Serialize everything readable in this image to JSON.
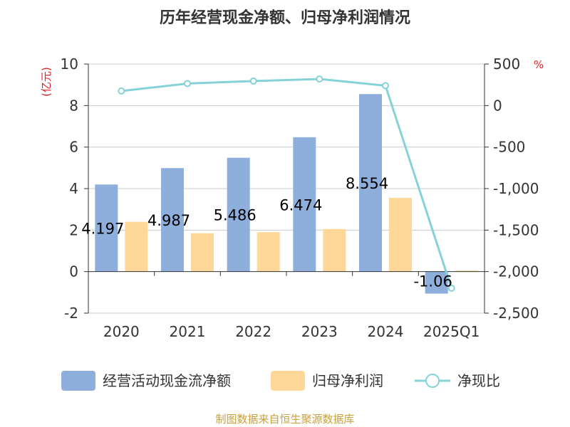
{
  "chart_data": {
    "type": "bar",
    "title": "历年经营现金净额、归母净利润情况",
    "categories": [
      "2020",
      "2021",
      "2022",
      "2023",
      "2024",
      "2025Q1"
    ],
    "series": [
      {
        "name": "经营活动现金流净额",
        "kind": "bar",
        "axis": "left",
        "color": "#8eaedc",
        "values": [
          4.197,
          4.987,
          5.486,
          6.474,
          8.554,
          -1.06
        ]
      },
      {
        "name": "归母净利润",
        "kind": "bar",
        "axis": "left",
        "color": "#fdd898",
        "values": [
          2.4,
          1.85,
          1.9,
          2.05,
          3.55,
          0.05
        ]
      },
      {
        "name": "净现比",
        "kind": "line",
        "axis": "right",
        "color": "#85d3d6",
        "values": [
          175,
          265,
          295,
          320,
          240,
          -2200
        ]
      }
    ],
    "data_labels": [
      "4.197",
      "4.987",
      "5.486",
      "6.474",
      "8.554",
      "-1.06"
    ],
    "y_left": {
      "unit": "(亿元)",
      "ylim": [
        -2,
        10
      ],
      "ticks": [
        -2,
        0,
        2,
        4,
        6,
        8,
        10
      ],
      "tick_labels": [
        "-2",
        "0",
        "2",
        "4",
        "6",
        "8",
        "10"
      ]
    },
    "y_right": {
      "unit": "%",
      "ylim": [
        -2500,
        500
      ],
      "ticks": [
        -2500,
        -2000,
        -1500,
        -1000,
        -500,
        0,
        500
      ],
      "tick_labels": [
        "-2,500",
        "-2,000",
        "-1,500",
        "-1,000",
        "-500",
        "0",
        "500"
      ]
    },
    "grid": true,
    "legend_position": "bottom",
    "source": "制图数据来自恒生聚源数据库",
    "colors": {
      "unit": "#e02020",
      "source": "#c8a040",
      "axis": "#333333",
      "grid": "#cccccc"
    }
  }
}
